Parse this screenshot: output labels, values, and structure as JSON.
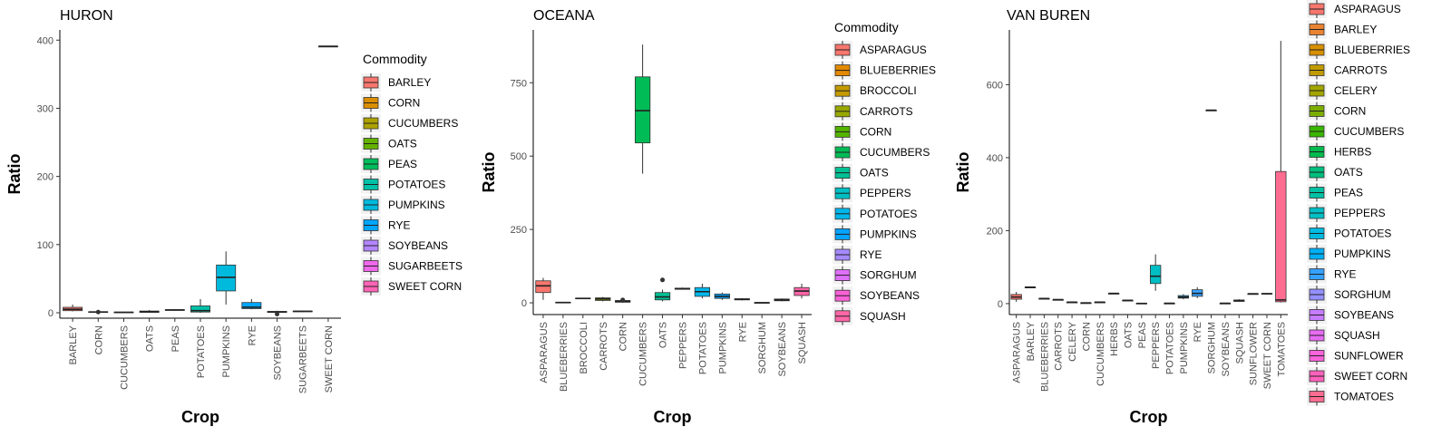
{
  "chart_data": [
    {
      "type": "box",
      "title": "HURON",
      "xlabel": "Crop",
      "ylabel": "Ratio",
      "ylim": [
        -8,
        415
      ],
      "yticks": [
        0,
        100,
        200,
        300,
        400
      ],
      "legend_title": "Commodity",
      "categories": [
        "BARLEY",
        "CORN",
        "CUCUMBERS",
        "OATS",
        "PEAS",
        "POTATOES",
        "PUMPKINS",
        "RYE",
        "SOYBEANS",
        "SUGARBEETS",
        "SWEET CORN"
      ],
      "colors": [
        "#F8766D",
        "#DB8E00",
        "#AEA200",
        "#64B200",
        "#00BD5C",
        "#00C1A7",
        "#00BADE",
        "#00A6FF",
        "#B385FF",
        "#EF67EB",
        "#FF63B6"
      ],
      "boxes": [
        {
          "min": 2,
          "q1": 3,
          "median": 5,
          "q3": 8,
          "max": 12,
          "outliers": []
        },
        {
          "min": 0,
          "q1": 0.5,
          "median": 1,
          "q3": 1.5,
          "max": 2,
          "outliers": [
            1
          ]
        },
        {
          "min": 0,
          "q1": 0,
          "median": 0.5,
          "q3": 1,
          "max": 1,
          "outliers": []
        },
        {
          "min": 0,
          "q1": 0.5,
          "median": 1.5,
          "q3": 2.5,
          "max": 4,
          "outliers": []
        },
        {
          "min": 3,
          "q1": 3.5,
          "median": 4,
          "q3": 4.5,
          "max": 5,
          "outliers": []
        },
        {
          "min": 0,
          "q1": 1,
          "median": 3,
          "q3": 10,
          "max": 20,
          "outliers": []
        },
        {
          "min": 12,
          "q1": 32,
          "median": 52,
          "q3": 70,
          "max": 90,
          "outliers": []
        },
        {
          "min": 5,
          "q1": 6,
          "median": 8,
          "q3": 15,
          "max": 20,
          "outliers": []
        },
        {
          "min": 0,
          "q1": 0.5,
          "median": 1,
          "q3": 2,
          "max": 3,
          "outliers": [
            -2
          ]
        },
        {
          "min": 1,
          "q1": 1.5,
          "median": 2,
          "q3": 2.5,
          "max": 3,
          "outliers": []
        },
        {
          "min": 391,
          "q1": 391,
          "median": 391,
          "q3": 391,
          "max": 391,
          "outliers": []
        }
      ]
    },
    {
      "type": "box",
      "title": "OCEANA",
      "xlabel": "Crop",
      "ylabel": "Ratio",
      "ylim": [
        -40,
        930
      ],
      "yticks": [
        0,
        250,
        500,
        750
      ],
      "legend_title": "Commodity",
      "categories": [
        "ASPARAGUS",
        "BLUEBERRIES",
        "BROCCOLI",
        "CARROTS",
        "CORN",
        "CUCUMBERS",
        "OATS",
        "PEPPERS",
        "POTATOES",
        "PUMPKINS",
        "RYE",
        "SORGHUM",
        "SOYBEANS",
        "SQUASH"
      ],
      "colors": [
        "#F8766D",
        "#E38900",
        "#C49A00",
        "#99A800",
        "#53B400",
        "#00BC56",
        "#00C094",
        "#00BFC4",
        "#00B6EB",
        "#06A4FF",
        "#A58AFF",
        "#DF70F8",
        "#FB61D7",
        "#FF66A8"
      ],
      "boxes": [
        {
          "min": 10,
          "q1": 35,
          "median": 58,
          "q3": 75,
          "max": 85,
          "outliers": []
        },
        {
          "min": 0,
          "q1": 0,
          "median": 1,
          "q3": 2,
          "max": 3,
          "outliers": []
        },
        {
          "min": 13,
          "q1": 14,
          "median": 15,
          "q3": 16,
          "max": 17,
          "outliers": []
        },
        {
          "min": 5,
          "q1": 8,
          "median": 13,
          "q3": 17,
          "max": 20,
          "outliers": []
        },
        {
          "min": 0,
          "q1": 2,
          "median": 5,
          "q3": 8,
          "max": 12,
          "outliers": [
            10
          ]
        },
        {
          "min": 440,
          "q1": 545,
          "median": 655,
          "q3": 770,
          "max": 880,
          "outliers": []
        },
        {
          "min": 5,
          "q1": 10,
          "median": 20,
          "q3": 35,
          "max": 45,
          "outliers": [
            78
          ]
        },
        {
          "min": 45,
          "q1": 46,
          "median": 48,
          "q3": 50,
          "max": 52,
          "outliers": []
        },
        {
          "min": 15,
          "q1": 22,
          "median": 38,
          "q3": 52,
          "max": 65,
          "outliers": []
        },
        {
          "min": 10,
          "q1": 15,
          "median": 22,
          "q3": 30,
          "max": 35,
          "outliers": []
        },
        {
          "min": 8,
          "q1": 10,
          "median": 12,
          "q3": 14,
          "max": 16,
          "outliers": []
        },
        {
          "min": 0,
          "q1": 0,
          "median": 0.5,
          "q3": 1,
          "max": 1,
          "outliers": []
        },
        {
          "min": 5,
          "q1": 7,
          "median": 10,
          "q3": 13,
          "max": 15,
          "outliers": []
        },
        {
          "min": 15,
          "q1": 25,
          "median": 40,
          "q3": 52,
          "max": 65,
          "outliers": []
        }
      ]
    },
    {
      "type": "box",
      "title": "VAN BUREN",
      "xlabel": "Crop",
      "ylabel": "Ratio",
      "ylim": [
        -30,
        750
      ],
      "yticks": [
        0,
        200,
        400,
        600
      ],
      "legend_title": "",
      "categories": [
        "ASPARAGUS",
        "BARLEY",
        "BLUEBERRIES",
        "CARROTS",
        "CELERY",
        "CORN",
        "CUCUMBERS",
        "HERBS",
        "OATS",
        "PEAS",
        "PEPPERS",
        "POTATOES",
        "PUMPKINS",
        "RYE",
        "SORGHUM",
        "SOYBEANS",
        "SQUASH",
        "SUNFLOWER",
        "SWEET CORN",
        "TOMATOES"
      ],
      "colors": [
        "#F8766D",
        "#EA8331",
        "#D89000",
        "#C09B00",
        "#A3A500",
        "#7CAE00",
        "#39B600",
        "#00BB4E",
        "#00BF7D",
        "#00C1A3",
        "#00BFC4",
        "#00BAE0",
        "#00B0F6",
        "#35A2FF",
        "#9590FF",
        "#C77CFF",
        "#E76BF3",
        "#FA62DB",
        "#FF62BC",
        "#FF6C91"
      ],
      "boxes": [
        {
          "min": 5,
          "q1": 12,
          "median": 18,
          "q3": 25,
          "max": 32,
          "outliers": []
        },
        {
          "min": 45,
          "q1": 45,
          "median": 45,
          "q3": 45,
          "max": 45,
          "outliers": []
        },
        {
          "min": 13,
          "q1": 13,
          "median": 14,
          "q3": 14,
          "max": 15,
          "outliers": []
        },
        {
          "min": 10,
          "q1": 10,
          "median": 11,
          "q3": 11,
          "max": 12,
          "outliers": []
        },
        {
          "min": 3,
          "q1": 3,
          "median": 4,
          "q3": 4,
          "max": 5,
          "outliers": []
        },
        {
          "min": 1,
          "q1": 1,
          "median": 2,
          "q3": 2,
          "max": 3,
          "outliers": []
        },
        {
          "min": 3,
          "q1": 3,
          "median": 4,
          "q3": 4,
          "max": 5,
          "outliers": []
        },
        {
          "min": 27,
          "q1": 27,
          "median": 28,
          "q3": 28,
          "max": 29,
          "outliers": []
        },
        {
          "min": 8,
          "q1": 8,
          "median": 9,
          "q3": 9,
          "max": 10,
          "outliers": []
        },
        {
          "min": 0,
          "q1": 0,
          "median": 0.5,
          "q3": 1,
          "max": 1,
          "outliers": []
        },
        {
          "min": 35,
          "q1": 55,
          "median": 75,
          "q3": 105,
          "max": 135,
          "outliers": []
        },
        {
          "min": 0,
          "q1": 0,
          "median": 1,
          "q3": 1,
          "max": 2,
          "outliers": []
        },
        {
          "min": 12,
          "q1": 15,
          "median": 18,
          "q3": 22,
          "max": 26,
          "outliers": []
        },
        {
          "min": 15,
          "q1": 20,
          "median": 28,
          "q3": 38,
          "max": 45,
          "outliers": []
        },
        {
          "min": 530,
          "q1": 530,
          "median": 530,
          "q3": 530,
          "max": 530,
          "outliers": []
        },
        {
          "min": 0,
          "q1": 0,
          "median": 1,
          "q3": 1,
          "max": 2,
          "outliers": []
        },
        {
          "min": 5,
          "q1": 6,
          "median": 8,
          "q3": 10,
          "max": 12,
          "outliers": []
        },
        {
          "min": 26,
          "q1": 26,
          "median": 27,
          "q3": 27,
          "max": 28,
          "outliers": []
        },
        {
          "min": 25,
          "q1": 26,
          "median": 27,
          "q3": 28,
          "max": 29,
          "outliers": []
        },
        {
          "min": 3,
          "q1": 5,
          "median": 10,
          "q3": 362,
          "max": 720,
          "outliers": []
        }
      ]
    }
  ]
}
